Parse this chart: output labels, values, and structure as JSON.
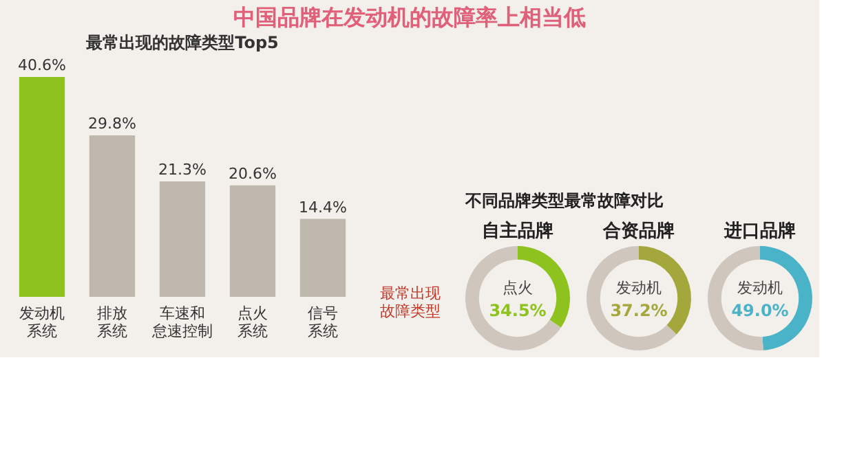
{
  "chart_data": [
    {
      "type": "bar",
      "title": "中国品牌在发动机的故障率上相当低",
      "subtitle": "最常出现的故障类型Top5",
      "categories": [
        "发动机系统",
        "排放系统",
        "车速和怠速控制",
        "点火系统",
        "信号系统"
      ],
      "values": [
        40.6,
        29.8,
        21.3,
        20.6,
        14.4
      ],
      "value_labels": [
        "40.6%",
        "29.8%",
        "21.3%",
        "20.6%",
        "14.4%"
      ],
      "colors": [
        "#8dc21f",
        "#bfb8ae",
        "#bfb8ae",
        "#bfb8ae",
        "#bfb8ae"
      ],
      "tick_labels": "x",
      "grid": false,
      "legend": false
    },
    {
      "type": "donut",
      "title": "自主品牌",
      "subtitle": "不同品牌类型最常故障对比",
      "annotations": [
        "最常出现故障类型"
      ],
      "categories": [
        "点火",
        null
      ],
      "values": [
        34.5,
        65.5
      ],
      "value_labels": [
        "34.5%",
        null
      ],
      "colors": [
        "#8dc21f",
        "#cfc6bd"
      ],
      "legend": false
    },
    {
      "type": "donut",
      "title": "合资品牌",
      "categories": [
        "发动机",
        null
      ],
      "values": [
        37.2,
        62.8
      ],
      "value_labels": [
        "37.2%",
        null
      ],
      "colors": [
        "#a4a83c",
        "#cfc6bd"
      ],
      "legend": false
    },
    {
      "type": "donut",
      "title": "进口品牌",
      "categories": [
        "发动机",
        null
      ],
      "values": [
        49.0,
        51.0
      ],
      "value_labels": [
        "49.0%",
        null
      ],
      "colors": [
        "#4bb3c8",
        "#cfc6bd"
      ],
      "legend": false
    }
  ]
}
